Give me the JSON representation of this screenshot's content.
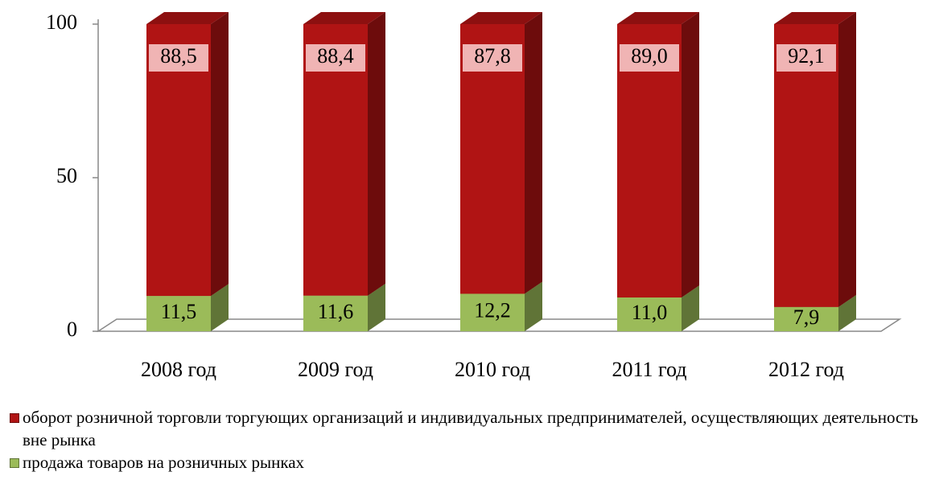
{
  "chart_data": {
    "type": "bar3d_stacked",
    "categories": [
      "2008 год",
      "2009 год",
      "2010 год",
      "2011 год",
      "2012 год"
    ],
    "series": [
      {
        "name": "продажа товаров на розничных рынках",
        "color": "#9bbb59",
        "values": [
          11.5,
          11.6,
          12.2,
          11.0,
          7.9
        ],
        "value_labels": [
          "11,5",
          "11,6",
          "12,2",
          "11,0",
          "7,9"
        ]
      },
      {
        "name": "оборот розничной торговли торгующих организаций и индивидуальных предпринимателей, осуществляющих деятельность вне рынка",
        "color": "#b01414",
        "values": [
          88.5,
          88.4,
          87.8,
          89.0,
          92.1
        ],
        "value_labels": [
          "88,5",
          "88,4",
          "87,8",
          "89,0",
          "92,1"
        ]
      }
    ],
    "ylim": [
      0,
      100
    ],
    "yticks": [
      0,
      50,
      100
    ]
  }
}
